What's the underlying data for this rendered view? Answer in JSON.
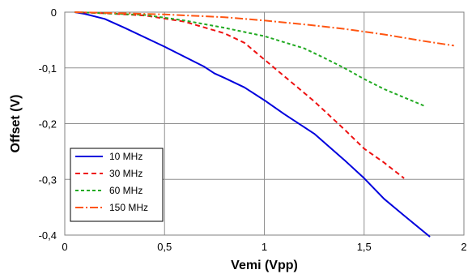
{
  "chart_data": {
    "type": "line",
    "xlabel": "Vemi (Vpp)",
    "ylabel": "Offset (V)",
    "xlim": [
      0,
      2
    ],
    "ylim": [
      -0.4,
      0
    ],
    "xticks": [
      0,
      0.5,
      1,
      1.5,
      2
    ],
    "xtick_labels": [
      "0",
      "0,5",
      "1",
      "1,5",
      "2"
    ],
    "yticks": [
      0,
      -0.1,
      -0.2,
      -0.3,
      -0.4
    ],
    "ytick_labels": [
      "0",
      "-0,1",
      "-0,2",
      "-0,3",
      "-0,4"
    ],
    "grid": true,
    "legend_position": "bottom-left",
    "series": [
      {
        "name": "10 MHz",
        "color": "#0000dd",
        "dash": "solid",
        "x": [
          0.05,
          0.1,
          0.2,
          0.3,
          0.5,
          0.7,
          0.75,
          0.8,
          0.9,
          1.0,
          1.1,
          1.25,
          1.4,
          1.5,
          1.6,
          1.7,
          1.83
        ],
        "y": [
          0,
          -0.003,
          -0.012,
          -0.028,
          -0.062,
          -0.098,
          -0.11,
          -0.118,
          -0.135,
          -0.158,
          -0.183,
          -0.218,
          -0.265,
          -0.298,
          -0.335,
          -0.365,
          -0.403
        ]
      },
      {
        "name": "30 MHz",
        "color": "#ee1111",
        "dash": "6,4",
        "x": [
          0.05,
          0.2,
          0.4,
          0.6,
          0.8,
          0.9,
          1.0,
          1.1,
          1.25,
          1.4,
          1.5,
          1.6,
          1.7
        ],
        "y": [
          0,
          -0.002,
          -0.006,
          -0.017,
          -0.038,
          -0.055,
          -0.085,
          -0.115,
          -0.16,
          -0.21,
          -0.245,
          -0.27,
          -0.298
        ]
      },
      {
        "name": "60 MHz",
        "color": "#22aa22",
        "dash": "4,3",
        "x": [
          0.05,
          0.2,
          0.4,
          0.6,
          0.8,
          1.0,
          1.2,
          1.3,
          1.4,
          1.5,
          1.6,
          1.7,
          1.8
        ],
        "y": [
          0,
          -0.002,
          -0.005,
          -0.015,
          -0.028,
          -0.043,
          -0.065,
          -0.082,
          -0.1,
          -0.12,
          -0.138,
          -0.153,
          -0.168
        ]
      },
      {
        "name": "150 MHz",
        "color": "#ff5511",
        "dash": "10,3,2,3",
        "x": [
          0.05,
          0.3,
          0.5,
          0.8,
          1.0,
          1.2,
          1.4,
          1.6,
          1.8,
          1.95
        ],
        "y": [
          0,
          -0.002,
          -0.004,
          -0.009,
          -0.015,
          -0.022,
          -0.03,
          -0.04,
          -0.052,
          -0.06
        ]
      }
    ]
  }
}
